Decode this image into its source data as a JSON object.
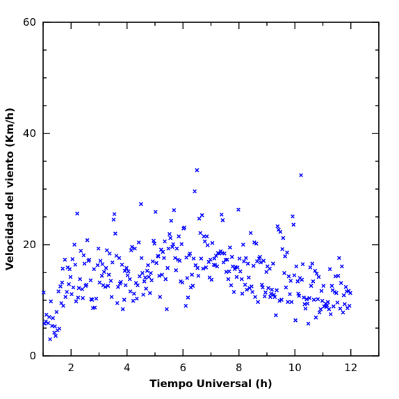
{
  "chart_data": {
    "type": "scatter",
    "title": "",
    "xlabel": "Tiempo Universal (h)",
    "ylabel": "Velocidad del viento (Km/h)",
    "xlim": [
      1,
      13
    ],
    "ylim": [
      0,
      60
    ],
    "x_ticks": [
      2,
      4,
      6,
      8,
      10,
      12
    ],
    "x_tick_labels": [
      "2",
      "4",
      "6",
      "8",
      "10",
      "12"
    ],
    "y_ticks": [
      0,
      20,
      40,
      60
    ],
    "y_tick_labels": [
      "0",
      "20",
      "40",
      "60"
    ],
    "marker": "x",
    "color": "#0000ff",
    "grid": false,
    "legend": "none",
    "points": [
      [
        1.02,
        11.4
      ],
      [
        1.05,
        5.8
      ],
      [
        1.1,
        6.2
      ],
      [
        1.12,
        7.4
      ],
      [
        1.18,
        5.9
      ],
      [
        1.22,
        7.0
      ],
      [
        1.25,
        3.0
      ],
      [
        1.28,
        9.8
      ],
      [
        1.32,
        5.4
      ],
      [
        1.35,
        6.8
      ],
      [
        1.4,
        4.2
      ],
      [
        1.42,
        5.3
      ],
      [
        1.45,
        3.6
      ],
      [
        1.48,
        7.9
      ],
      [
        1.52,
        4.6
      ],
      [
        1.55,
        11.6
      ],
      [
        1.58,
        4.9
      ],
      [
        1.62,
        12.5
      ],
      [
        1.65,
        9.5
      ],
      [
        1.68,
        13.2
      ],
      [
        1.7,
        15.7
      ],
      [
        1.72,
        9.0
      ],
      [
        1.78,
        17.3
      ],
      [
        1.8,
        10.6
      ],
      [
        1.85,
        11.5
      ],
      [
        1.88,
        15.9
      ],
      [
        1.92,
        12.9
      ],
      [
        1.95,
        15.6
      ],
      [
        1.98,
        14.2
      ],
      [
        2.02,
        11.1
      ],
      [
        2.05,
        17.4
      ],
      [
        2.08,
        12.3
      ],
      [
        2.12,
        20.0
      ],
      [
        2.15,
        16.4
      ],
      [
        2.18,
        9.8
      ],
      [
        2.22,
        25.6
      ],
      [
        2.25,
        10.5
      ],
      [
        2.28,
        12.2
      ],
      [
        2.32,
        13.8
      ],
      [
        2.35,
        18.9
      ],
      [
        2.4,
        12.0
      ],
      [
        2.42,
        10.4
      ],
      [
        2.45,
        18.1
      ],
      [
        2.48,
        16.6
      ],
      [
        2.52,
        12.6
      ],
      [
        2.55,
        12.8
      ],
      [
        2.58,
        20.8
      ],
      [
        2.62,
        17.1
      ],
      [
        2.65,
        17.3
      ],
      [
        2.7,
        13.6
      ],
      [
        2.72,
        10.2
      ],
      [
        2.75,
        10.1
      ],
      [
        2.78,
        8.6
      ],
      [
        2.82,
        15.6
      ],
      [
        2.85,
        8.7
      ],
      [
        2.9,
        10.3
      ],
      [
        2.95,
        16.3
      ],
      [
        2.98,
        19.3
      ],
      [
        3.02,
        13.2
      ],
      [
        3.05,
        17.1
      ],
      [
        3.1,
        14.4
      ],
      [
        3.12,
        16.5
      ],
      [
        3.15,
        12.7
      ],
      [
        3.18,
        15.1
      ],
      [
        3.22,
        12.4
      ],
      [
        3.25,
        15.8
      ],
      [
        3.28,
        19.0
      ],
      [
        3.32,
        12.6
      ],
      [
        3.35,
        14.6
      ],
      [
        3.38,
        18.4
      ],
      [
        3.42,
        13.5
      ],
      [
        3.45,
        10.6
      ],
      [
        3.48,
        16.8
      ],
      [
        3.52,
        24.5
      ],
      [
        3.55,
        25.5
      ],
      [
        3.58,
        22.0
      ],
      [
        3.62,
        18.0
      ],
      [
        3.65,
        9.5
      ],
      [
        3.68,
        12.4
      ],
      [
        3.72,
        17.6
      ],
      [
        3.75,
        13.0
      ],
      [
        3.78,
        13.3
      ],
      [
        3.82,
        16.4
      ],
      [
        3.85,
        8.4
      ],
      [
        3.9,
        10.1
      ],
      [
        3.92,
        15.3
      ],
      [
        3.95,
        12.7
      ],
      [
        3.98,
        15.8
      ],
      [
        4.02,
        14.5
      ],
      [
        4.05,
        15.2
      ],
      [
        4.1,
        13.8
      ],
      [
        4.12,
        11.6
      ],
      [
        4.15,
        19.0
      ],
      [
        4.18,
        19.6
      ],
      [
        4.22,
        9.9
      ],
      [
        4.25,
        11.2
      ],
      [
        4.28,
        19.3
      ],
      [
        4.32,
        13.1
      ],
      [
        4.35,
        10.3
      ],
      [
        4.38,
        12.7
      ],
      [
        4.42,
        20.4
      ],
      [
        4.45,
        14.3
      ],
      [
        4.5,
        27.3
      ],
      [
        4.52,
        17.6
      ],
      [
        4.55,
        14.9
      ],
      [
        4.58,
        11.0
      ],
      [
        4.62,
        13.4
      ],
      [
        4.65,
        14.1
      ],
      [
        4.68,
        12.1
      ],
      [
        4.72,
        15.3
      ],
      [
        4.75,
        16.3
      ],
      [
        4.78,
        14.2
      ],
      [
        4.82,
        11.3
      ],
      [
        4.85,
        14.9
      ],
      [
        4.88,
        13.6
      ],
      [
        4.92,
        17.0
      ],
      [
        4.95,
        20.7
      ],
      [
        4.98,
        20.2
      ],
      [
        5.02,
        25.9
      ],
      [
        5.05,
        16.7
      ],
      [
        5.1,
        18.0
      ],
      [
        5.12,
        17.9
      ],
      [
        5.15,
        14.4
      ],
      [
        5.18,
        10.6
      ],
      [
        5.22,
        19.1
      ],
      [
        5.25,
        14.6
      ],
      [
        5.28,
        18.7
      ],
      [
        5.32,
        17.6
      ],
      [
        5.35,
        20.6
      ],
      [
        5.38,
        13.8
      ],
      [
        5.42,
        8.4
      ],
      [
        5.45,
        15.8
      ],
      [
        5.48,
        19.3
      ],
      [
        5.52,
        21.9
      ],
      [
        5.55,
        21.2
      ],
      [
        5.58,
        24.3
      ],
      [
        5.62,
        19.6
      ],
      [
        5.65,
        20.1
      ],
      [
        5.68,
        26.2
      ],
      [
        5.72,
        17.6
      ],
      [
        5.75,
        15.4
      ],
      [
        5.78,
        19.3
      ],
      [
        5.82,
        17.3
      ],
      [
        5.85,
        21.5
      ],
      [
        5.88,
        17.1
      ],
      [
        5.92,
        13.4
      ],
      [
        5.95,
        20.1
      ],
      [
        5.98,
        13.2
      ],
      [
        6.02,
        22.9
      ],
      [
        6.05,
        23.1
      ],
      [
        6.1,
        9.0
      ],
      [
        6.12,
        17.7
      ],
      [
        6.15,
        14.0
      ],
      [
        6.18,
        10.5
      ],
      [
        6.22,
        18.1
      ],
      [
        6.25,
        18.4
      ],
      [
        6.28,
        12.3
      ],
      [
        6.32,
        14.6
      ],
      [
        6.35,
        12.6
      ],
      [
        6.38,
        17.5
      ],
      [
        6.42,
        29.6
      ],
      [
        6.45,
        16.3
      ],
      [
        6.5,
        33.4
      ],
      [
        6.52,
        15.8
      ],
      [
        6.55,
        14.4
      ],
      [
        6.58,
        24.7
      ],
      [
        6.62,
        22.1
      ],
      [
        6.65,
        17.5
      ],
      [
        6.68,
        25.3
      ],
      [
        6.72,
        15.7
      ],
      [
        6.75,
        21.5
      ],
      [
        6.78,
        20.6
      ],
      [
        6.82,
        15.9
      ],
      [
        6.85,
        21.5
      ],
      [
        6.88,
        19.9
      ],
      [
        6.92,
        16.9
      ],
      [
        6.95,
        14.1
      ],
      [
        6.98,
        17.3
      ],
      [
        7.02,
        13.7
      ],
      [
        7.05,
        20.3
      ],
      [
        7.1,
        16.4
      ],
      [
        7.12,
        17.5
      ],
      [
        7.15,
        16.3
      ],
      [
        7.18,
        18.0
      ],
      [
        7.22,
        16.1
      ],
      [
        7.25,
        18.5
      ],
      [
        7.3,
        18.4
      ],
      [
        7.35,
        18.8
      ],
      [
        7.38,
        25.4
      ],
      [
        7.4,
        18.5
      ],
      [
        7.42,
        24.4
      ],
      [
        7.45,
        16.8
      ],
      [
        7.48,
        18.4
      ],
      [
        7.52,
        17.3
      ],
      [
        7.55,
        15.1
      ],
      [
        7.58,
        17.3
      ],
      [
        7.62,
        13.8
      ],
      [
        7.65,
        15.2
      ],
      [
        7.68,
        19.5
      ],
      [
        7.72,
        12.7
      ],
      [
        7.75,
        17.8
      ],
      [
        7.78,
        16.1
      ],
      [
        7.82,
        11.5
      ],
      [
        7.85,
        15.6
      ],
      [
        7.88,
        16.0
      ],
      [
        7.92,
        14.2
      ],
      [
        7.95,
        15.9
      ],
      [
        7.98,
        26.3
      ],
      [
        8.02,
        17.5
      ],
      [
        8.05,
        15.2
      ],
      [
        8.1,
        13.8
      ],
      [
        8.12,
        11.2
      ],
      [
        8.15,
        20.0
      ],
      [
        8.18,
        17.0
      ],
      [
        8.22,
        12.8
      ],
      [
        8.25,
        17.6
      ],
      [
        8.28,
        11.9
      ],
      [
        8.32,
        16.6
      ],
      [
        8.35,
        14.1
      ],
      [
        8.38,
        12.2
      ],
      [
        8.42,
        22.1
      ],
      [
        8.45,
        12.5
      ],
      [
        8.48,
        11.5
      ],
      [
        8.52,
        16.2
      ],
      [
        8.55,
        20.4
      ],
      [
        8.58,
        10.6
      ],
      [
        8.62,
        20.2
      ],
      [
        8.65,
        17.0
      ],
      [
        8.68,
        9.7
      ],
      [
        8.72,
        17.5
      ],
      [
        8.75,
        17.8
      ],
      [
        8.78,
        16.8
      ],
      [
        8.82,
        12.8
      ],
      [
        8.85,
        12.3
      ],
      [
        8.88,
        17.1
      ],
      [
        8.92,
        10.7
      ],
      [
        8.95,
        11.4
      ],
      [
        8.98,
        15.1
      ],
      [
        9.02,
        16.1
      ],
      [
        9.05,
        12.2
      ],
      [
        9.1,
        15.7
      ],
      [
        9.12,
        10.6
      ],
      [
        9.15,
        11.2
      ],
      [
        9.18,
        11.9
      ],
      [
        9.22,
        16.6
      ],
      [
        9.25,
        11.0
      ],
      [
        9.28,
        10.6
      ],
      [
        9.32,
        7.3
      ],
      [
        9.35,
        11.8
      ],
      [
        9.38,
        23.3
      ],
      [
        9.42,
        22.7
      ],
      [
        9.45,
        9.9
      ],
      [
        9.48,
        22.3
      ],
      [
        9.52,
        10.1
      ],
      [
        9.55,
        19.2
      ],
      [
        9.58,
        21.2
      ],
      [
        9.62,
        14.9
      ],
      [
        9.65,
        17.9
      ],
      [
        9.68,
        12.3
      ],
      [
        9.72,
        18.6
      ],
      [
        9.75,
        9.7
      ],
      [
        9.78,
        14.3
      ],
      [
        9.82,
        11.1
      ],
      [
        9.85,
        13.5
      ],
      [
        9.88,
        9.7
      ],
      [
        9.92,
        25.1
      ],
      [
        9.95,
        23.6
      ],
      [
        9.98,
        14.5
      ],
      [
        10.02,
        6.4
      ],
      [
        10.05,
        16.1
      ],
      [
        10.1,
        13.4
      ],
      [
        10.12,
        11.2
      ],
      [
        10.15,
        10.8
      ],
      [
        10.18,
        14.0
      ],
      [
        10.22,
        32.5
      ],
      [
        10.25,
        13.7
      ],
      [
        10.28,
        16.5
      ],
      [
        10.32,
        10.5
      ],
      [
        10.35,
        9.3
      ],
      [
        10.38,
        8.5
      ],
      [
        10.42,
        10.2
      ],
      [
        10.45,
        9.4
      ],
      [
        10.48,
        5.8
      ],
      [
        10.52,
        10.4
      ],
      [
        10.55,
        15.9
      ],
      [
        10.58,
        12.6
      ],
      [
        10.62,
        16.6
      ],
      [
        10.65,
        13.4
      ],
      [
        10.68,
        10.1
      ],
      [
        10.72,
        15.3
      ],
      [
        10.75,
        6.9
      ],
      [
        10.78,
        14.8
      ],
      [
        10.82,
        10.2
      ],
      [
        10.85,
        14.2
      ],
      [
        10.88,
        7.8
      ],
      [
        10.92,
        8.4
      ],
      [
        10.95,
        11.7
      ],
      [
        10.98,
        9.9
      ],
      [
        11.02,
        12.6
      ],
      [
        11.05,
        8.9
      ],
      [
        11.1,
        9.4
      ],
      [
        11.12,
        8.8
      ],
      [
        11.15,
        9.1
      ],
      [
        11.18,
        9.7
      ],
      [
        11.22,
        8.4
      ],
      [
        11.25,
        15.6
      ],
      [
        11.28,
        7.5
      ],
      [
        11.32,
        12.6
      ],
      [
        11.35,
        11.8
      ],
      [
        11.38,
        8.9
      ],
      [
        11.42,
        11.5
      ],
      [
        11.45,
        14.3
      ],
      [
        11.48,
        11.3
      ],
      [
        11.52,
        9.6
      ],
      [
        11.55,
        14.4
      ],
      [
        11.58,
        17.6
      ],
      [
        11.62,
        8.5
      ],
      [
        11.65,
        13.1
      ],
      [
        11.68,
        16.1
      ],
      [
        11.72,
        7.8
      ],
      [
        11.75,
        10.9
      ],
      [
        11.78,
        9.3
      ],
      [
        11.82,
        12.4
      ],
      [
        11.85,
        11.6
      ],
      [
        11.88,
        8.6
      ],
      [
        11.92,
        11.7
      ],
      [
        11.95,
        9.0
      ],
      [
        11.98,
        11.3
      ]
    ]
  }
}
